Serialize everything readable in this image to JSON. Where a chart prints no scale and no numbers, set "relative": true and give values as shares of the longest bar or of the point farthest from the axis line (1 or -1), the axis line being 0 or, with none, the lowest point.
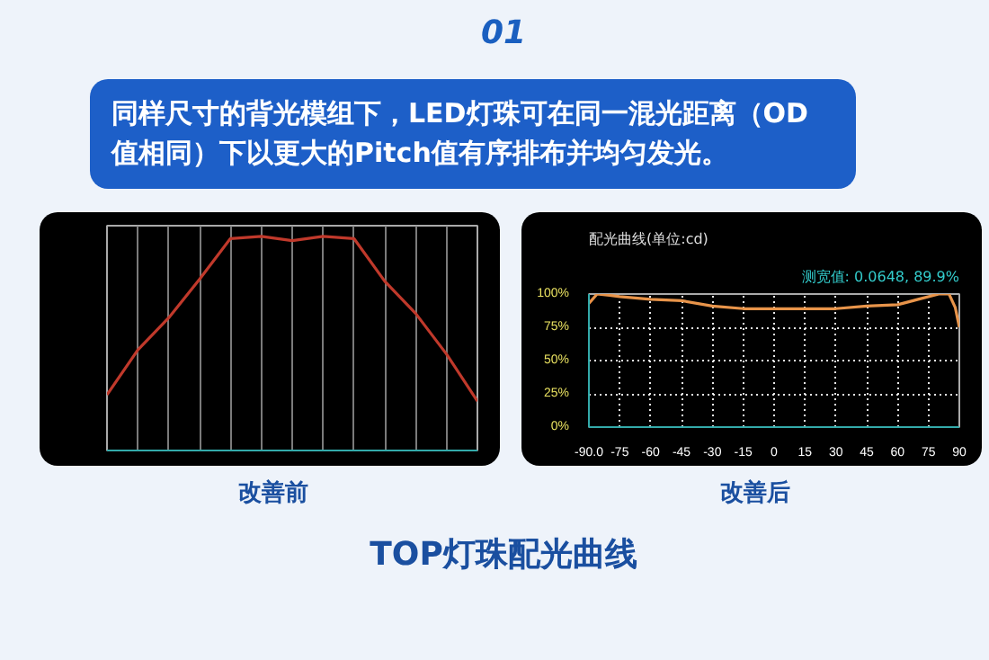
{
  "chart_data": [
    {
      "type": "line",
      "relative": true,
      "xlabel": "改善前",
      "annotations": [
        "01",
        "同样尺寸的背光模组下，LED灯珠可在同一混光距离（OD值相同）下以更大的Pitch值有序排布并均匀发光。"
      ],
      "categories": [
        null,
        null,
        null,
        null,
        null,
        null,
        null,
        null,
        null,
        null,
        null,
        null,
        null
      ],
      "series": [
        {
          "color": "#c0392b",
          "values": [
            0.26,
            0.47,
            0.62,
            0.8,
            0.99,
            1,
            0.98,
            1,
            0.99,
            0.79,
            0.64,
            0.45,
            0.23
          ]
        }
      ],
      "grid": "x",
      "line_style": "solid"
    },
    {
      "type": "line",
      "title": "配光曲线(单位:cd)",
      "subtitle": "测宽值: 0.0648, 89.9%",
      "xlabel": "改善后",
      "annotations": [
        "TOP灯珠配光曲线"
      ],
      "x": [
        -90,
        -86,
        -80,
        -75,
        -60,
        -45,
        -30,
        -15,
        0,
        15,
        30,
        45,
        60,
        70,
        80,
        85,
        88,
        90
      ],
      "series": [
        {
          "color": "#e8944a",
          "values": [
            93,
            100,
            99,
            98,
            96,
            95,
            91,
            89,
            89,
            89,
            89,
            91,
            92,
            96,
            100,
            100,
            90,
            75
          ]
        }
      ],
      "xlim": [
        -90,
        90
      ],
      "ylim": [
        0,
        100
      ],
      "xticks": [
        {
          "value": -90,
          "label": "-90.0"
        },
        -75,
        -60,
        -45,
        -30,
        -15,
        0,
        15,
        30,
        45,
        60,
        75,
        90
      ],
      "yticks": [
        {
          "value": 0,
          "label": "0%"
        },
        {
          "value": 25,
          "label": "25%"
        },
        {
          "value": 50,
          "label": "50%"
        },
        {
          "value": 75,
          "label": "75%"
        },
        {
          "value": 100,
          "label": "100%"
        }
      ],
      "grid": true,
      "line_style": "solid"
    }
  ]
}
